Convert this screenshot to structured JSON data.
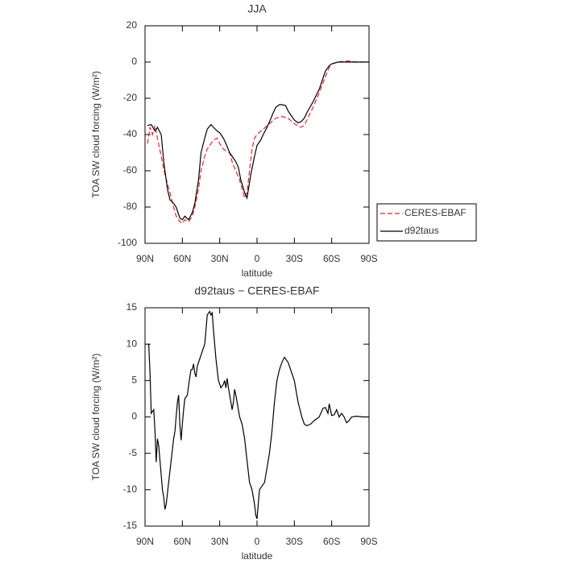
{
  "chart_data": [
    {
      "type": "line",
      "title": "JJA",
      "xlabel": "latitude",
      "ylabel": "TOA SW cloud forcing (W/m²)",
      "xlim": [
        90,
        -90
      ],
      "xticks": [
        {
          "value": 90,
          "label": "90N"
        },
        {
          "value": 60,
          "label": "60N"
        },
        {
          "value": 30,
          "label": "30N"
        },
        0,
        {
          "value": -30,
          "label": "30S"
        },
        {
          "value": -60,
          "label": "60S"
        },
        {
          "value": -90,
          "label": "90S"
        }
      ],
      "ylim": [
        -100,
        20
      ],
      "yticks": [
        20,
        0,
        -20,
        -40,
        -60,
        -80,
        -100
      ],
      "legend": "right",
      "series": [
        {
          "name": "CERES-EBAF",
          "color": "#e8262a",
          "dash": "dashed",
          "x": [
            88,
            86,
            84,
            82,
            80,
            77,
            74,
            70,
            67,
            65,
            62,
            60,
            58,
            55,
            52,
            50,
            47,
            45,
            42,
            40,
            37,
            35,
            32,
            30,
            27,
            25,
            22,
            20,
            17,
            14,
            12,
            10,
            8,
            6,
            4,
            2,
            0,
            -5,
            -10,
            -15,
            -20,
            -25,
            -30,
            -35,
            -38,
            -40,
            -45,
            -50,
            -55,
            -58,
            -60,
            -65,
            -70,
            -75,
            -80,
            -90
          ],
          "values": [
            -45,
            -36,
            -40,
            -35,
            -42,
            -52,
            -62,
            -72,
            -80,
            -85,
            -88,
            -89,
            -87,
            -88,
            -85,
            -80,
            -70,
            -60,
            -52,
            -48,
            -45,
            -43,
            -42,
            -45,
            -48,
            -49,
            -50,
            -55,
            -60,
            -65,
            -70,
            -75,
            -72,
            -60,
            -48,
            -42,
            -40,
            -37,
            -34,
            -31,
            -30,
            -31,
            -34,
            -36,
            -35,
            -32,
            -25,
            -17,
            -8,
            -3,
            -1,
            0,
            0.5,
            0.5,
            0,
            0
          ]
        },
        {
          "name": "d92taus",
          "color": "#000000",
          "dash": "solid",
          "x": [
            88,
            85,
            82,
            80,
            77,
            75,
            72,
            70,
            67,
            65,
            62,
            60,
            58,
            55,
            52,
            50,
            47,
            45,
            42,
            40,
            37,
            35,
            32,
            30,
            27,
            25,
            22,
            20,
            17,
            15,
            13,
            10,
            8,
            5,
            2,
            0,
            -3,
            -5,
            -8,
            -10,
            -13,
            -15,
            -18,
            -20,
            -23,
            -25,
            -28,
            -30,
            -33,
            -35,
            -38,
            -40,
            -45,
            -50,
            -55,
            -58,
            -60,
            -65,
            -70,
            -80,
            -90
          ],
          "values": [
            -35,
            -34.5,
            -38,
            -36,
            -40,
            -55,
            -70,
            -76,
            -78,
            -80,
            -86,
            -87,
            -85,
            -87,
            -83,
            -78,
            -65,
            -50,
            -42,
            -37,
            -34.5,
            -36,
            -38,
            -39,
            -42,
            -45,
            -50,
            -52,
            -55,
            -58,
            -65,
            -72,
            -75,
            -62,
            -52,
            -46,
            -43,
            -40,
            -36,
            -33,
            -28,
            -25,
            -23.5,
            -23.5,
            -24,
            -27,
            -30,
            -32,
            -33.5,
            -33,
            -31,
            -28,
            -22,
            -15,
            -5,
            -2,
            -1,
            0,
            0,
            0,
            0
          ]
        }
      ]
    },
    {
      "type": "line",
      "title": "d92taus − CERES-EBAF",
      "xlabel": "latitude",
      "ylabel": "TOA SW cloud forcing (W/m²)",
      "xlim": [
        90,
        -90
      ],
      "xticks": [
        {
          "value": 90,
          "label": "90N"
        },
        {
          "value": 60,
          "label": "60N"
        },
        {
          "value": 30,
          "label": "30N"
        },
        0,
        {
          "value": -30,
          "label": "30S"
        },
        {
          "value": -60,
          "label": "60S"
        },
        {
          "value": -90,
          "label": "90S"
        }
      ],
      "ylim": [
        -15,
        15
      ],
      "yticks": [
        15,
        10,
        5,
        0,
        -5,
        -10,
        -15
      ],
      "series": [
        {
          "color": "#000000",
          "dash": "solid",
          "x": [
            88,
            87,
            86,
            85,
            83,
            82,
            81,
            80,
            79,
            77,
            76,
            75,
            74,
            73,
            71,
            69,
            67,
            66,
            65,
            64,
            63,
            62,
            61,
            60,
            59,
            58,
            56,
            54,
            53,
            52,
            51,
            50,
            49,
            48,
            46,
            44,
            42,
            41,
            40,
            38,
            37,
            36,
            35,
            33,
            31,
            30,
            29,
            27,
            26,
            25,
            24,
            23,
            21,
            20,
            19,
            18,
            17,
            16,
            14,
            12,
            10,
            8,
            6,
            4,
            2,
            1,
            0,
            -1,
            -2,
            -4,
            -6,
            -8,
            -10,
            -12,
            -14,
            -16,
            -18,
            -20,
            -22,
            -25,
            -28,
            -30,
            -33,
            -36,
            -38,
            -40,
            -43,
            -46,
            -50,
            -53,
            -55,
            -57,
            -58,
            -60,
            -62,
            -64,
            -66,
            -68,
            -70,
            -72,
            -74,
            -76,
            -80,
            -85,
            -90
          ],
          "values": [
            10,
            10,
            6,
            0.5,
            1,
            -2,
            -6.2,
            -3,
            -4,
            -8,
            -10,
            -11,
            -12.7,
            -12,
            -9,
            -6,
            -3,
            -2,
            0,
            2,
            3,
            -1,
            -3.2,
            -1,
            1,
            2.5,
            3,
            5.5,
            6.5,
            6.5,
            7.3,
            6,
            5.5,
            7,
            8,
            9,
            10,
            12,
            14,
            14.5,
            14,
            14.3,
            12,
            8,
            5,
            4.5,
            4,
            4.5,
            5,
            4,
            5.3,
            4,
            2,
            1,
            2,
            3.8,
            3,
            2,
            0,
            -1,
            -3,
            -6,
            -9,
            -10,
            -12,
            -13.5,
            -14,
            -12,
            -10,
            -9.5,
            -9,
            -7,
            -5,
            -2,
            2,
            5,
            6.5,
            7.5,
            8.2,
            7.5,
            6,
            5,
            2,
            0,
            -1,
            -1.2,
            -1,
            -0.5,
            0,
            1.2,
            1.3,
            0.5,
            1.8,
            0.2,
            0.3,
            1,
            0,
            0.5,
            0,
            -0.8,
            -0.5,
            0,
            0.1,
            0,
            0
          ]
        }
      ]
    }
  ]
}
